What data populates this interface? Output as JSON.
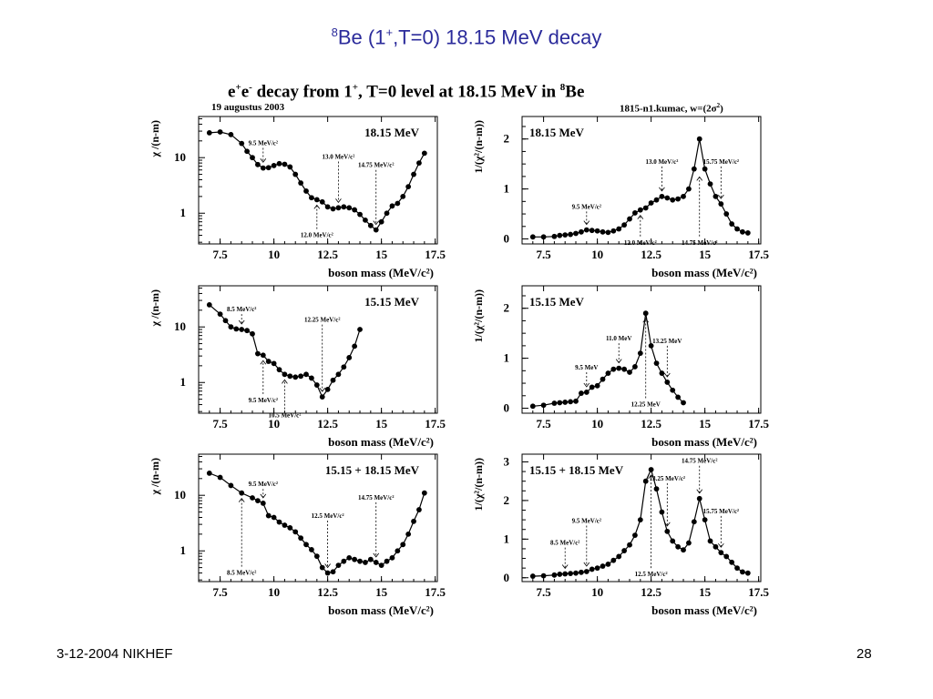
{
  "slide": {
    "title_sup": "8",
    "title_a": "Be (1",
    "title_sup2": "+",
    "title_b": ",T=0) 18.15 MeV decay",
    "footer_left": "3-12-2004 NIKHEF",
    "footer_right": "28"
  },
  "figure": {
    "title_a": "e",
    "title_sup1": "+",
    "title_b": "e",
    "title_sup2": "-",
    "title_c": " decay from 1",
    "title_sup3": "+",
    "title_d": ", T=0 level at 18.15 MeV in ",
    "title_sup4": "8",
    "title_e": "Be",
    "date": "19 augustus 2003",
    "file_a": "1815-n1.kumac, w=(2σ",
    "file_sup": "2",
    "file_b": ")"
  },
  "chart_data": [
    {
      "type": "line",
      "panel": "left-top",
      "scale": "log",
      "title": "18.15 MeV",
      "xlabel": "boson  mass  (MeV/c²)",
      "ylabel": "χ /(n-m)",
      "xlim": [
        6.5,
        17.6
      ],
      "ylim": [
        0.28,
        55
      ],
      "xticks": [
        "7.5",
        "10",
        "12.5",
        "15",
        "17.5"
      ],
      "yticks": [
        {
          "v": 1,
          "label": "1"
        },
        {
          "v": 10,
          "label": "10"
        }
      ],
      "series": [
        {
          "x": [
            7,
            7.5,
            8,
            8.5,
            8.75,
            9,
            9.25,
            9.5,
            9.75,
            10,
            10.25,
            10.5,
            10.75,
            11,
            11.25,
            11.5,
            11.75,
            12,
            12.25,
            12.5,
            12.75,
            13,
            13.25,
            13.5,
            13.75,
            14,
            14.25,
            14.5,
            14.75,
            15,
            15.25,
            15.5,
            15.75,
            16,
            16.25,
            16.5,
            16.75,
            17
          ],
          "y": [
            28,
            29,
            26,
            18,
            13,
            10,
            7.5,
            6.5,
            6.6,
            7.2,
            7.8,
            7.6,
            6.8,
            5.0,
            3.5,
            2.5,
            1.9,
            1.75,
            1.6,
            1.3,
            1.2,
            1.25,
            1.3,
            1.25,
            1.15,
            0.95,
            0.75,
            0.6,
            0.5,
            0.7,
            1.0,
            1.35,
            1.5,
            2.0,
            3.0,
            5.0,
            8.0,
            12.0
          ]
        }
      ],
      "annotations": [
        {
          "x": 9.5,
          "text": "9.5 MeV/c²",
          "dir": "down",
          "ya": 15,
          "yt": 6.6
        },
        {
          "x": 13.0,
          "text": "13.0 MeV/c²",
          "dir": "down",
          "ya": 8.5,
          "yt": 1.25
        },
        {
          "x": 14.75,
          "text": "14.75 MeV/c²",
          "dir": "down",
          "ya": 6.0,
          "yt": 0.5
        },
        {
          "x": 12.0,
          "text": "12.0 MeV/c²",
          "dir": "up",
          "ya": 0.52,
          "yt": 1.75
        }
      ]
    },
    {
      "type": "line",
      "panel": "right-top",
      "scale": "linear",
      "title": "18.15 MeV",
      "xlabel": "boson  mass  (MeV/c²)",
      "ylabel": "1/(χ²/(n-m))",
      "xlim": [
        6.5,
        17.6
      ],
      "ylim": [
        -0.1,
        2.45
      ],
      "xticks": [
        "7.5",
        "10",
        "12.5",
        "15",
        "17.5"
      ],
      "yticks": [
        {
          "v": 0,
          "label": "0"
        },
        {
          "v": 1,
          "label": "1"
        },
        {
          "v": 2,
          "label": "2"
        }
      ],
      "series": [
        {
          "x": [
            7,
            7.5,
            8,
            8.25,
            8.5,
            8.75,
            9,
            9.25,
            9.5,
            9.75,
            10,
            10.25,
            10.5,
            10.75,
            11,
            11.25,
            11.5,
            11.75,
            12,
            12.25,
            12.5,
            12.75,
            13,
            13.25,
            13.5,
            13.75,
            14,
            14.25,
            14.5,
            14.75,
            15,
            15.25,
            15.5,
            15.75,
            16,
            16.25,
            16.5,
            16.75,
            17
          ],
          "y": [
            0.04,
            0.04,
            0.05,
            0.07,
            0.08,
            0.09,
            0.11,
            0.14,
            0.18,
            0.17,
            0.16,
            0.14,
            0.13,
            0.16,
            0.2,
            0.28,
            0.4,
            0.52,
            0.58,
            0.62,
            0.72,
            0.78,
            0.85,
            0.82,
            0.78,
            0.8,
            0.85,
            1.0,
            1.4,
            2.0,
            1.4,
            1.1,
            0.85,
            0.7,
            0.5,
            0.3,
            0.2,
            0.14,
            0.12
          ]
        }
      ],
      "annotations": [
        {
          "x": 9.5,
          "text": "9.5 MeV/c²",
          "dir": "down",
          "ya": 0.55,
          "yt": 0.18
        },
        {
          "x": 13.0,
          "text": "13.0 MeV/c²",
          "dir": "down",
          "ya": 1.45,
          "yt": 0.85
        },
        {
          "x": 15.75,
          "text": "15.75 MeV/c²",
          "dir": "down",
          "ya": 1.45,
          "yt": 0.7
        },
        {
          "x": 12.0,
          "text": "12.0 MeV/c²",
          "dir": "up",
          "ya": 0.05,
          "yt": 0.58
        },
        {
          "x": 14.75,
          "text": "14.75 MeV/c²",
          "dir": "up",
          "ya": 0.05,
          "yt": 1.35
        }
      ]
    },
    {
      "type": "line",
      "panel": "left-middle",
      "scale": "log",
      "title": "15.15 MeV",
      "xlabel": "boson  mass  (MeV/c²)",
      "ylabel": "χ /(n-m)",
      "xlim": [
        6.5,
        17.6
      ],
      "ylim": [
        0.28,
        55
      ],
      "xticks": [
        "7.5",
        "10",
        "12.5",
        "15",
        "17.5"
      ],
      "yticks": [
        {
          "v": 1,
          "label": "1"
        },
        {
          "v": 10,
          "label": "10"
        }
      ],
      "series": [
        {
          "x": [
            7,
            7.5,
            7.75,
            8,
            8.25,
            8.5,
            8.75,
            9,
            9.25,
            9.5,
            9.75,
            10,
            10.25,
            10.5,
            10.75,
            11,
            11.25,
            11.5,
            11.75,
            12,
            12.25,
            12.5,
            12.75,
            13,
            13.25,
            13.5,
            13.75,
            14
          ],
          "y": [
            25,
            17,
            13,
            10,
            9.2,
            9.0,
            8.6,
            7.5,
            3.3,
            3.1,
            2.4,
            2.2,
            1.7,
            1.4,
            1.3,
            1.25,
            1.3,
            1.4,
            1.2,
            0.9,
            0.55,
            0.75,
            1.1,
            1.4,
            1.9,
            2.8,
            4.5,
            9.0
          ]
        }
      ],
      "annotations": [
        {
          "x": 8.5,
          "text": "8.5 MeV/c²",
          "dir": "down",
          "ya": 17,
          "yt": 9.0
        },
        {
          "x": 12.25,
          "text": "12.25 MeV/c²",
          "dir": "down",
          "ya": 11,
          "yt": 0.55
        },
        {
          "x": 9.5,
          "text": "9.5 MeV/c²",
          "dir": "up",
          "ya": 0.62,
          "yt": 3.1
        },
        {
          "x": 10.5,
          "text": "10.5 MeV/c²",
          "dir": "up",
          "ya": 0.33,
          "yt": 1.4
        }
      ]
    },
    {
      "type": "line",
      "panel": "right-middle",
      "scale": "linear",
      "title": "15.15 MeV",
      "xlabel": "boson  mass  (MeV/c²)",
      "ylabel": "1/(χ²/(n-m))",
      "xlim": [
        6.5,
        17.6
      ],
      "ylim": [
        -0.1,
        2.45
      ],
      "xticks": [
        "7.5",
        "10",
        "12.5",
        "15",
        "17.5"
      ],
      "yticks": [
        {
          "v": 0,
          "label": "0"
        },
        {
          "v": 1,
          "label": "1"
        },
        {
          "v": 2,
          "label": "2"
        }
      ],
      "series": [
        {
          "x": [
            7,
            7.5,
            8,
            8.25,
            8.5,
            8.75,
            9,
            9.25,
            9.5,
            9.75,
            10,
            10.25,
            10.5,
            10.75,
            11,
            11.25,
            11.5,
            11.75,
            12,
            12.25,
            12.5,
            12.75,
            13,
            13.25,
            13.5,
            13.75,
            14
          ],
          "y": [
            0.04,
            0.06,
            0.1,
            0.11,
            0.12,
            0.13,
            0.14,
            0.3,
            0.32,
            0.42,
            0.45,
            0.58,
            0.7,
            0.78,
            0.8,
            0.78,
            0.72,
            0.83,
            1.1,
            1.9,
            1.25,
            0.9,
            0.7,
            0.52,
            0.36,
            0.22,
            0.11
          ]
        }
      ],
      "annotations": [
        {
          "x": 11.0,
          "text": "11.0 MeV",
          "dir": "down",
          "ya": 1.3,
          "yt": 0.8
        },
        {
          "x": 13.25,
          "text": "13.25 MeV",
          "dir": "down",
          "ya": 1.25,
          "yt": 0.52
        },
        {
          "x": 9.5,
          "text": "9.5 MeV",
          "dir": "down",
          "ya": 0.72,
          "yt": 0.32
        },
        {
          "x": 12.25,
          "text": "12.25 MeV",
          "dir": "up",
          "ya": 0.2,
          "yt": 1.9
        }
      ]
    },
    {
      "type": "line",
      "panel": "left-bottom",
      "scale": "log",
      "title": "15.15 + 18.15 MeV",
      "xlabel": "boson  mass  (MeV/c²)",
      "ylabel": "χ /(n-m)",
      "xlim": [
        6.5,
        17.6
      ],
      "ylim": [
        0.28,
        55
      ],
      "xticks": [
        "7.5",
        "10",
        "12.5",
        "15",
        "17.5"
      ],
      "yticks": [
        {
          "v": 1,
          "label": "1"
        },
        {
          "v": 10,
          "label": "10"
        }
      ],
      "series": [
        {
          "x": [
            7,
            7.5,
            8,
            8.5,
            9,
            9.25,
            9.5,
            9.75,
            10,
            10.25,
            10.5,
            10.75,
            11,
            11.25,
            11.5,
            11.75,
            12,
            12.25,
            12.5,
            12.75,
            13,
            13.25,
            13.5,
            13.75,
            14,
            14.25,
            14.5,
            14.75,
            15,
            15.25,
            15.5,
            15.75,
            16,
            16.25,
            16.5,
            16.75,
            17
          ],
          "y": [
            25,
            21,
            15,
            11,
            9.0,
            8.0,
            7.2,
            4.3,
            4.0,
            3.3,
            2.9,
            2.6,
            2.2,
            1.7,
            1.3,
            1.05,
            0.8,
            0.5,
            0.4,
            0.42,
            0.55,
            0.65,
            0.75,
            0.7,
            0.65,
            0.62,
            0.7,
            0.62,
            0.55,
            0.65,
            0.75,
            1.0,
            1.3,
            2.0,
            3.4,
            5.5,
            11.0
          ]
        }
      ],
      "annotations": [
        {
          "x": 9.5,
          "text": "9.5 MeV/c²",
          "dir": "down",
          "ya": 13,
          "yt": 7.2
        },
        {
          "x": 14.75,
          "text": "14.75 MeV/c²",
          "dir": "down",
          "ya": 7.5,
          "yt": 0.62
        },
        {
          "x": 12.5,
          "text": "12.5 MeV/c²",
          "dir": "down",
          "ya": 3.5,
          "yt": 0.4
        },
        {
          "x": 8.5,
          "text": "8.5 MeV/c²",
          "dir": "up",
          "ya": 0.52,
          "yt": 11
        }
      ]
    },
    {
      "type": "line",
      "panel": "right-bottom",
      "scale": "linear",
      "title": "15.15 + 18.15 MeV",
      "xlabel": "boson  mass  (MeV/c²)",
      "ylabel": "1/(χ²/(n-m))",
      "xlim": [
        6.5,
        17.6
      ],
      "ylim": [
        -0.1,
        3.2
      ],
      "xticks": [
        "7.5",
        "10",
        "12.5",
        "15",
        "17.5"
      ],
      "yticks": [
        {
          "v": 0,
          "label": "0"
        },
        {
          "v": 1,
          "label": "1"
        },
        {
          "v": 2,
          "label": "2"
        },
        {
          "v": 3,
          "label": "3"
        }
      ],
      "series": [
        {
          "x": [
            7,
            7.5,
            8,
            8.25,
            8.5,
            8.75,
            9,
            9.25,
            9.5,
            9.75,
            10,
            10.25,
            10.5,
            10.75,
            11,
            11.25,
            11.5,
            11.75,
            12,
            12.25,
            12.5,
            12.75,
            13,
            13.25,
            13.5,
            13.75,
            14,
            14.25,
            14.5,
            14.75,
            15,
            15.25,
            15.5,
            15.75,
            16,
            16.25,
            16.5,
            16.75,
            17
          ],
          "y": [
            0.04,
            0.05,
            0.07,
            0.09,
            0.1,
            0.11,
            0.12,
            0.14,
            0.16,
            0.22,
            0.25,
            0.3,
            0.35,
            0.45,
            0.55,
            0.7,
            0.85,
            1.1,
            1.5,
            2.5,
            2.8,
            2.3,
            1.7,
            1.2,
            0.95,
            0.8,
            0.72,
            0.9,
            1.45,
            2.05,
            1.5,
            0.95,
            0.8,
            0.65,
            0.55,
            0.4,
            0.25,
            0.15,
            0.12
          ]
        }
      ],
      "annotations": [
        {
          "x": 9.5,
          "text": "9.5 MeV/c²",
          "dir": "down",
          "ya": 1.35,
          "yt": 0.16
        },
        {
          "x": 8.5,
          "text": "8.5 MeV/c²",
          "dir": "down",
          "ya": 0.78,
          "yt": 0.1
        },
        {
          "x": 13.25,
          "text": "13.25 MeV/c²",
          "dir": "down",
          "ya": 2.45,
          "yt": 1.2
        },
        {
          "x": 14.75,
          "text": "14.75 MeV/c²",
          "dir": "down",
          "ya": 2.9,
          "yt": 2.05
        },
        {
          "x": 15.75,
          "text": "15.75 MeV/c²",
          "dir": "down",
          "ya": 1.6,
          "yt": 0.65
        },
        {
          "x": 12.5,
          "text": "12.5 MeV/c²",
          "dir": "up",
          "ya": 0.25,
          "yt": 2.8
        }
      ]
    }
  ]
}
